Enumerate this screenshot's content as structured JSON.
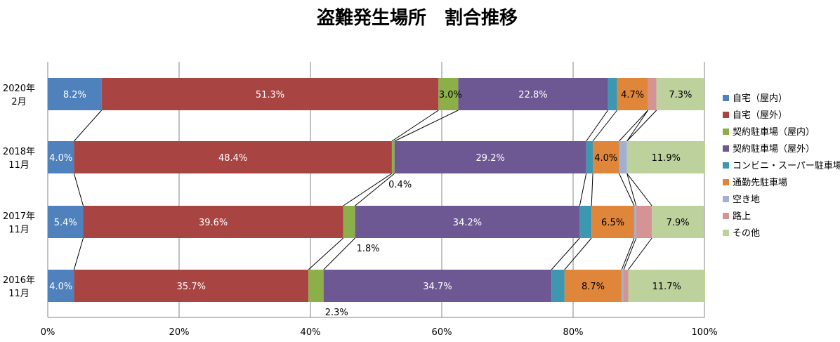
{
  "chart_data": {
    "type": "bar",
    "orientation": "horizontal",
    "stacked": true,
    "normalized": true,
    "title": "盗難発生場所　割合推移",
    "categories": [
      "2020年\n2月",
      "2018年\n11月",
      "2017年\n11月",
      "2016年\n11月"
    ],
    "xlim": [
      0,
      100
    ],
    "x_ticks": [
      "0%",
      "20%",
      "40%",
      "60%",
      "80%",
      "100%"
    ],
    "grid": true,
    "legend_position": "right",
    "series": [
      {
        "name": "自宅（屋内）",
        "color": "#4F81BD",
        "values": [
          8.2,
          4.0,
          5.4,
          4.0
        ],
        "labels": [
          "8.2%",
          "4.0%",
          "5.4%",
          "4.0%"
        ]
      },
      {
        "name": "自宅（屋外）",
        "color": "#A84442",
        "values": [
          51.3,
          48.4,
          39.6,
          35.7
        ],
        "labels": [
          "51.3%",
          "48.4%",
          "39.6%",
          "35.7%"
        ]
      },
      {
        "name": "契約駐車場（屋内）",
        "color": "#8DAF4A",
        "values": [
          3.0,
          0.4,
          1.8,
          2.3
        ],
        "labels": [
          "3.0%",
          "0.4%",
          "1.8%",
          "2.3%"
        ]
      },
      {
        "name": "契約駐車場（屋外）",
        "color": "#6E5893",
        "values": [
          22.8,
          29.2,
          34.2,
          34.7
        ],
        "labels": [
          "22.8%",
          "29.2%",
          "34.2%",
          "34.7%"
        ]
      },
      {
        "name": "コンビニ・スーパー駐車場",
        "color": "#3E97B0",
        "values": [
          1.4,
          1.0,
          1.8,
          2.0
        ],
        "labels": [
          "",
          "",
          "",
          ""
        ]
      },
      {
        "name": "通勤先駐車場",
        "color": "#E0863B",
        "values": [
          4.7,
          4.0,
          6.5,
          8.7
        ],
        "labels": [
          "4.7%",
          "4.0%",
          "6.5%",
          "8.7%"
        ]
      },
      {
        "name": "空き地",
        "color": "#A2AFD2",
        "values": [
          0.0,
          1.2,
          0.3,
          0.3
        ],
        "labels": [
          "",
          "",
          "",
          ""
        ]
      },
      {
        "name": "路上",
        "color": "#D59493",
        "values": [
          1.3,
          0.0,
          2.4,
          0.7
        ],
        "labels": [
          "",
          "",
          "",
          ""
        ]
      },
      {
        "name": "その他",
        "color": "#BCD19C",
        "values": [
          7.3,
          11.9,
          7.9,
          11.7
        ],
        "labels": [
          "7.3%",
          "11.9%",
          "7.9%",
          "11.7%"
        ]
      }
    ]
  }
}
